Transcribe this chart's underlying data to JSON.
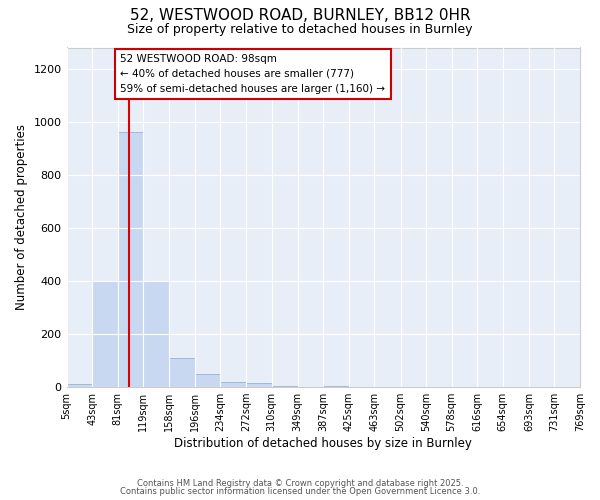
{
  "title1": "52, WESTWOOD ROAD, BURNLEY, BB12 0HR",
  "title2": "Size of property relative to detached houses in Burnley",
  "xlabel": "Distribution of detached houses by size in Burnley",
  "ylabel": "Number of detached properties",
  "bin_edges": [
    5,
    43,
    81,
    119,
    158,
    196,
    234,
    272,
    310,
    349,
    387,
    425,
    463,
    502,
    540,
    578,
    616,
    654,
    693,
    731,
    769
  ],
  "bar_heights": [
    10,
    400,
    960,
    400,
    110,
    50,
    20,
    15,
    5,
    0,
    5,
    0,
    0,
    0,
    0,
    0,
    0,
    0,
    0,
    0
  ],
  "bar_color": "#c8d8f0",
  "bar_edge_color": "#a0b8d8",
  "property_line_x": 98,
  "property_line_color": "#dd0000",
  "annotation_title": "52 WESTWOOD ROAD: 98sqm",
  "annotation_line2": "← 40% of detached houses are smaller (777)",
  "annotation_line3": "59% of semi-detached houses are larger (1,160) →",
  "annotation_box_edge_color": "#cc0000",
  "annotation_box_facecolor": "#ffffff",
  "ylim": [
    0,
    1280
  ],
  "yticks": [
    0,
    200,
    400,
    600,
    800,
    1000,
    1200
  ],
  "fig_bg_color": "#ffffff",
  "plot_bg_color": "#e8eef8",
  "grid_color": "#ffffff",
  "footer1": "Contains HM Land Registry data © Crown copyright and database right 2025.",
  "footer2": "Contains public sector information licensed under the Open Government Licence 3.0."
}
